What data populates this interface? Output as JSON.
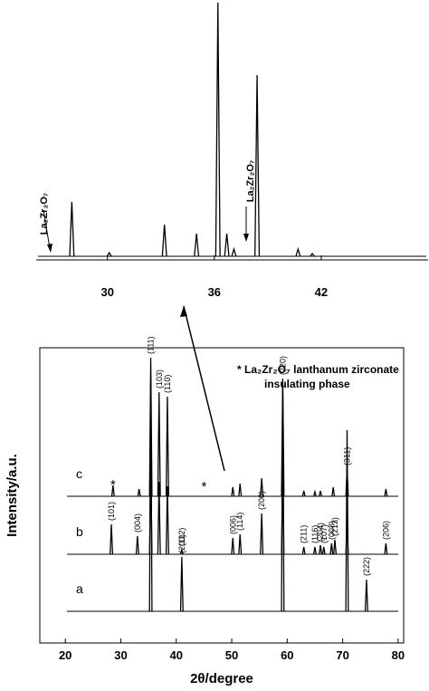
{
  "chart_data": [
    {
      "type": "line",
      "xlim": [
        26,
        48
      ],
      "xticks": [
        30,
        36,
        42
      ],
      "series": [
        {
          "color": "#000000",
          "x": [
            28.0,
            30.1,
            33.2,
            35.0,
            36.2,
            36.7,
            37.1,
            38.4,
            40.7,
            41.5
          ],
          "values": [
            60,
            4,
            35,
            25,
            280,
            25,
            8,
            200,
            8,
            3
          ]
        }
      ],
      "annotations": [
        "La₂Zr₂O₇",
        "La₂Zr₂O₇"
      ]
    },
    {
      "type": "line",
      "xlabel": "2θ/degree",
      "ylabel": "Intensity/a.u.",
      "xlim": [
        15.4,
        81
      ],
      "xticks": [
        20,
        30,
        40,
        50,
        60,
        70,
        80
      ],
      "legend_text": [
        "* La₂Zr₂O₇ lanthanum zirconate",
        "insulating phase"
      ],
      "annotations": [
        {
          "text": "*",
          "x": 45
        }
      ],
      "series": [
        {
          "name": "a",
          "color": "#000000",
          "x": [
            35.4,
            41.0,
            59.2,
            70.8,
            74.3
          ],
          "values": [
            260,
            60,
            250,
            200,
            35
          ],
          "labels": [
            null,
            "(200)",
            null,
            null,
            "(222)"
          ]
        },
        {
          "name": "b",
          "color": "#000000",
          "x": [
            28.3,
            33.0,
            35.4,
            36.9,
            38.4,
            41.0,
            50.2,
            51.5,
            55.4,
            59.2,
            63.0,
            65.0,
            66.0,
            66.6,
            68.0,
            68.6,
            70.8,
            77.8
          ],
          "values": [
            33,
            20,
            100,
            80,
            75,
            5,
            18,
            22,
            45,
            100,
            8,
            8,
            10,
            8,
            12,
            16,
            40,
            12
          ],
          "labels": [
            "(101)",
            "(004)",
            null,
            null,
            null,
            "(112)",
            "(006)",
            "(114)",
            "(200)",
            null,
            "(211)",
            "(116)",
            "(204)",
            "(107)",
            "(008)",
            "(213)",
            null,
            "(206)"
          ]
        },
        {
          "name": "c",
          "color": "#000000",
          "x": [
            28.6,
            33.3,
            35.4,
            36.9,
            38.4,
            50.2,
            51.5,
            55.4,
            59.2,
            63.0,
            65.0,
            66.0,
            68.3,
            70.8,
            77.8
          ],
          "values": [
            12,
            8,
            153,
            115,
            110,
            10,
            14,
            20,
            130,
            6,
            5,
            6,
            10,
            30,
            8
          ],
          "labels": [
            "*",
            null,
            "(111)",
            "(103)",
            "(110)",
            null,
            null,
            null,
            "(220)",
            null,
            null,
            null,
            null,
            "(311)",
            null
          ]
        }
      ]
    }
  ]
}
